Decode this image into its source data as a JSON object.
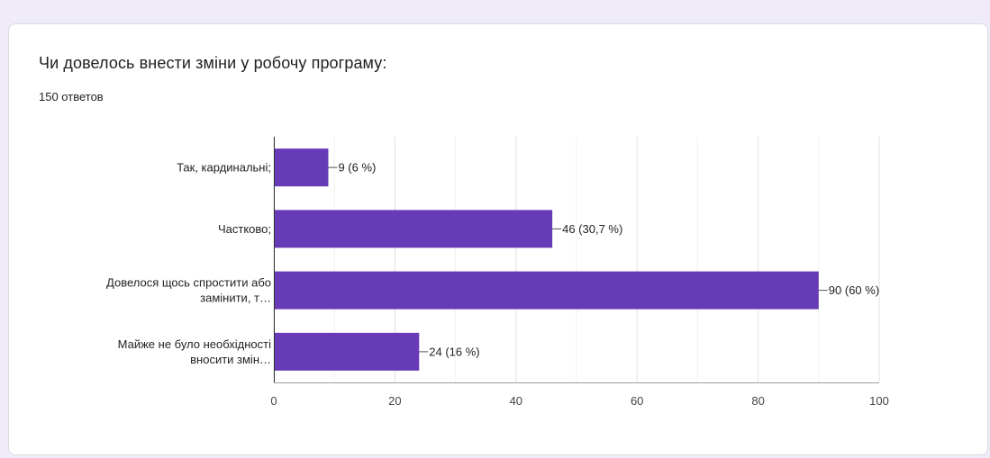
{
  "question": {
    "title": "Чи довелось внести зміни у робочу програму:",
    "responses": "150 ответов"
  },
  "chart_data": {
    "type": "bar",
    "orientation": "horizontal",
    "categories": [
      [
        "Так, кардинальні;"
      ],
      [
        "Частково;"
      ],
      [
        "Довелося щось спростити або",
        "замінити, т…"
      ],
      [
        "Майже не було необхідності",
        "вносити змін…"
      ]
    ],
    "values": [
      9,
      46,
      90,
      24
    ],
    "value_labels": [
      "9 (6 %)",
      "46 (30,7 %)",
      "90 (60 %)",
      "24 (16 %)"
    ],
    "xlim": [
      0,
      100
    ],
    "x_ticks": [
      0,
      20,
      40,
      60,
      80,
      100
    ],
    "grid": true,
    "bar_color": "#673ab7"
  }
}
